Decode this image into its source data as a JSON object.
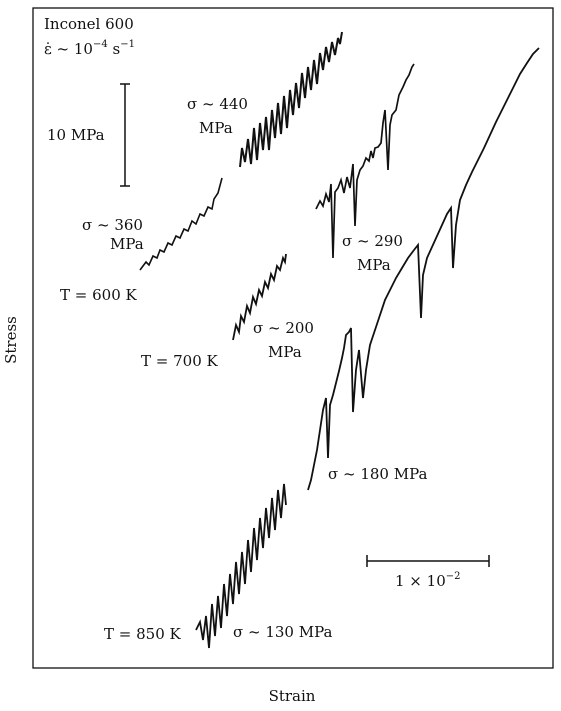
{
  "chart_data": {
    "type": "line",
    "title": "",
    "xlabel": "Strain",
    "ylabel": "Stress",
    "material": "Inconel 600",
    "strain_rate_prefix": "ε̇ ~ 10",
    "strain_rate_exp": "−4",
    "strain_rate_unit": "s",
    "strain_rate_unit_exp": "−1",
    "stress_scale_label": "10 MPa",
    "strain_scale_base": "1 × 10",
    "strain_scale_exp": "−2",
    "temperature_labels": [
      "T = 600 K",
      "T = 700 K",
      "T = 850 K"
    ],
    "stress_labels": [
      {
        "line1": "σ ~ 440",
        "line2": "MPa"
      },
      {
        "line1": "σ ~ 360",
        "line2": "MPa"
      },
      {
        "line1": "σ ~ 290",
        "line2": "MPa"
      },
      {
        "line1": "σ ~ 200",
        "line2": "MPa"
      },
      {
        "line1": "σ ~ 180 MPa",
        "line2": ""
      },
      {
        "line1": "σ ~ 130 MPa",
        "line2": ""
      }
    ],
    "series": [
      {
        "temperature": "600 K",
        "stress_MPa": 360
      },
      {
        "temperature": "600 K",
        "stress_MPa": 440
      },
      {
        "temperature": "700 K",
        "stress_MPa": 290
      },
      {
        "temperature": "700 K",
        "stress_MPa": 200
      },
      {
        "temperature": "850 K",
        "stress_MPa": 180
      },
      {
        "temperature": "850 K",
        "stress_MPa": 130
      }
    ],
    "colors": {
      "line": "#111111",
      "background": "#ffffff"
    }
  }
}
